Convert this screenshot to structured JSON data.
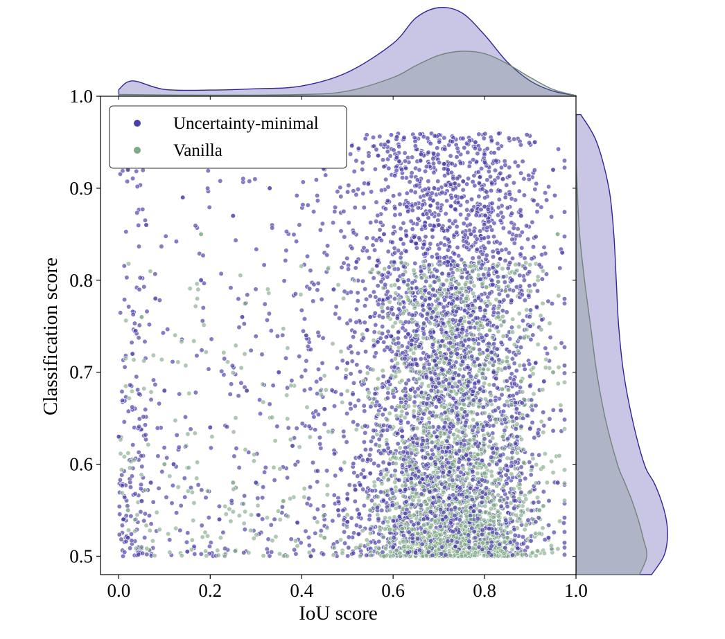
{
  "chart_data": {
    "type": "scatter",
    "xlabel": "IoU score",
    "ylabel": "Classification score",
    "xlim": [
      -0.04,
      1.0
    ],
    "ylim": [
      0.48,
      1.0
    ],
    "xticks": [
      "0.0",
      "0.2",
      "0.4",
      "0.6",
      "0.8",
      "1.0"
    ],
    "yticks": [
      "0.5",
      "0.6",
      "0.7",
      "0.8",
      "0.9",
      "1.0"
    ],
    "legend": {
      "placement": "top-left"
    },
    "marginal_density": {
      "top": "x",
      "right": "y",
      "style": "kde-filled"
    },
    "series": [
      {
        "name": "Uncertainty-minimal",
        "color": "#4b3fa8",
        "kde_x": {
          "x": [
            0.0,
            0.03,
            0.1,
            0.2,
            0.3,
            0.4,
            0.5,
            0.6,
            0.65,
            0.7,
            0.75,
            0.8,
            0.85,
            0.9,
            0.95,
            1.0
          ],
          "density": [
            0.2,
            0.45,
            0.2,
            0.18,
            0.22,
            0.3,
            0.7,
            1.55,
            2.3,
            2.6,
            2.45,
            1.8,
            1.0,
            0.45,
            0.15,
            0.02
          ]
        },
        "kde_y": {
          "y": [
            0.48,
            0.5,
            0.52,
            0.54,
            0.56,
            0.58,
            0.6,
            0.65,
            0.7,
            0.75,
            0.8,
            0.85,
            0.9,
            0.95,
            0.98
          ],
          "density": [
            3.1,
            3.6,
            3.75,
            3.7,
            3.5,
            3.2,
            2.8,
            2.3,
            1.95,
            1.75,
            1.65,
            1.55,
            1.35,
            0.85,
            0.2
          ]
        },
        "points": [
          [
            0.78,
            0.95
          ],
          [
            0.91,
            0.95
          ],
          [
            0.66,
            0.93
          ],
          [
            0.72,
            0.92
          ],
          [
            0.84,
            0.91
          ],
          [
            0.69,
            0.9
          ],
          [
            0.75,
            0.89
          ],
          [
            0.63,
            0.88
          ],
          [
            0.8,
            0.88
          ],
          [
            0.88,
            0.87
          ],
          [
            0.7,
            0.86
          ],
          [
            0.58,
            0.85
          ],
          [
            0.77,
            0.85
          ],
          [
            0.65,
            0.84
          ],
          [
            0.83,
            0.83
          ],
          [
            0.52,
            0.82
          ],
          [
            0.72,
            0.82
          ],
          [
            0.61,
            0.8
          ],
          [
            0.86,
            0.8
          ],
          [
            0.47,
            0.79
          ],
          [
            0.68,
            0.78
          ],
          [
            0.79,
            0.77
          ],
          [
            0.55,
            0.76
          ],
          [
            0.9,
            0.75
          ],
          [
            0.41,
            0.74
          ],
          [
            0.64,
            0.73
          ],
          [
            0.74,
            0.72
          ],
          [
            0.5,
            0.71
          ],
          [
            0.35,
            0.7
          ],
          [
            0.82,
            0.7
          ],
          [
            0.59,
            0.69
          ],
          [
            0.28,
            0.68
          ],
          [
            0.7,
            0.67
          ],
          [
            0.45,
            0.66
          ],
          [
            0.87,
            0.65
          ],
          [
            0.2,
            0.64
          ],
          [
            0.62,
            0.63
          ],
          [
            0.38,
            0.62
          ],
          [
            0.76,
            0.61
          ],
          [
            0.12,
            0.6
          ],
          [
            0.55,
            0.59
          ],
          [
            0.3,
            0.58
          ],
          [
            0.68,
            0.57
          ],
          [
            0.05,
            0.56
          ],
          [
            0.48,
            0.55
          ],
          [
            0.22,
            0.54
          ],
          [
            0.81,
            0.53
          ],
          [
            0.02,
            0.52
          ],
          [
            0.6,
            0.51
          ],
          [
            0.15,
            0.505
          ],
          [
            0.42,
            0.5
          ],
          [
            0.02,
            0.92
          ],
          [
            0.06,
            0.86
          ],
          [
            0.14,
            0.89
          ],
          [
            0.25,
            0.87
          ],
          [
            0.33,
            0.9
          ],
          [
            0.42,
            0.93
          ],
          [
            0.18,
            0.8
          ],
          [
            0.08,
            0.78
          ],
          [
            0.27,
            0.76
          ],
          [
            0.03,
            0.72
          ],
          [
            0.1,
            0.68
          ],
          [
            0.0,
            0.63
          ],
          [
            0.07,
            0.58
          ],
          [
            0.01,
            0.54
          ],
          [
            0.95,
            0.92
          ],
          [
            0.97,
            0.83
          ],
          [
            0.93,
            0.69
          ],
          [
            0.96,
            0.58
          ],
          [
            0.94,
            0.52
          ]
        ]
      },
      {
        "name": "Vanilla",
        "color": "#7ea886",
        "kde_x": {
          "x": [
            0.0,
            0.2,
            0.4,
            0.5,
            0.6,
            0.65,
            0.7,
            0.75,
            0.8,
            0.85,
            0.9,
            0.95,
            1.0
          ],
          "density": [
            0.05,
            0.03,
            0.05,
            0.15,
            0.55,
            0.9,
            1.2,
            1.32,
            1.25,
            0.95,
            0.55,
            0.2,
            0.02
          ]
        },
        "kde_y": {
          "y": [
            0.48,
            0.5,
            0.52,
            0.54,
            0.56,
            0.58,
            0.6,
            0.65,
            0.7,
            0.75,
            0.8,
            0.85,
            0.9,
            0.93
          ],
          "density": [
            2.6,
            2.9,
            2.75,
            2.55,
            2.3,
            2.0,
            1.7,
            1.2,
            0.85,
            0.6,
            0.35,
            0.15,
            0.05,
            0.0
          ]
        },
        "points": [
          [
            0.7,
            0.8
          ],
          [
            0.76,
            0.78
          ],
          [
            0.83,
            0.76
          ],
          [
            0.65,
            0.74
          ],
          [
            0.79,
            0.72
          ],
          [
            0.72,
            0.7
          ],
          [
            0.88,
            0.69
          ],
          [
            0.6,
            0.68
          ],
          [
            0.75,
            0.66
          ],
          [
            0.68,
            0.64
          ],
          [
            0.84,
            0.63
          ],
          [
            0.57,
            0.62
          ],
          [
            0.73,
            0.6
          ],
          [
            0.8,
            0.59
          ],
          [
            0.64,
            0.58
          ],
          [
            0.9,
            0.57
          ],
          [
            0.7,
            0.56
          ],
          [
            0.55,
            0.55
          ],
          [
            0.77,
            0.54
          ],
          [
            0.62,
            0.53
          ],
          [
            0.85,
            0.52
          ],
          [
            0.68,
            0.51
          ],
          [
            0.74,
            0.505
          ],
          [
            0.58,
            0.5
          ],
          [
            0.92,
            0.55
          ],
          [
            0.45,
            0.52
          ],
          [
            0.36,
            0.56
          ],
          [
            0.05,
            0.76
          ],
          [
            0.18,
            0.85
          ],
          [
            0.4,
            0.93
          ],
          [
            0.1,
            0.6
          ],
          [
            0.25,
            0.58
          ],
          [
            0.02,
            0.55
          ],
          [
            0.95,
            0.7
          ],
          [
            0.96,
            0.85
          ]
        ]
      }
    ]
  }
}
